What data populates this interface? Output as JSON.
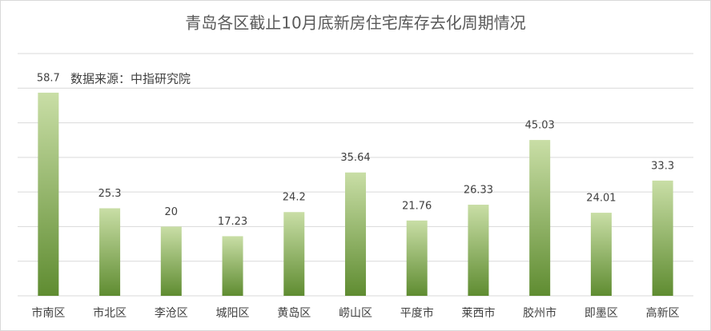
{
  "chart_data": {
    "type": "bar",
    "title": "青岛各区截止10月底新房住宅库存去化周期情况",
    "annotation": "数据来源：中指研究院",
    "categories": [
      "市南区",
      "市北区",
      "李沧区",
      "城阳区",
      "黄岛区",
      "崂山区",
      "平度市",
      "莱西市",
      "胶州市",
      "即墨区",
      "高新区"
    ],
    "values": [
      58.7,
      25.3,
      20,
      17.23,
      24.2,
      35.64,
      21.76,
      26.33,
      45.03,
      24.01,
      33.3
    ],
    "ylim": [
      0,
      70
    ],
    "yticks": [
      0,
      10,
      20,
      30,
      40,
      50,
      60,
      70
    ],
    "grid": true
  }
}
